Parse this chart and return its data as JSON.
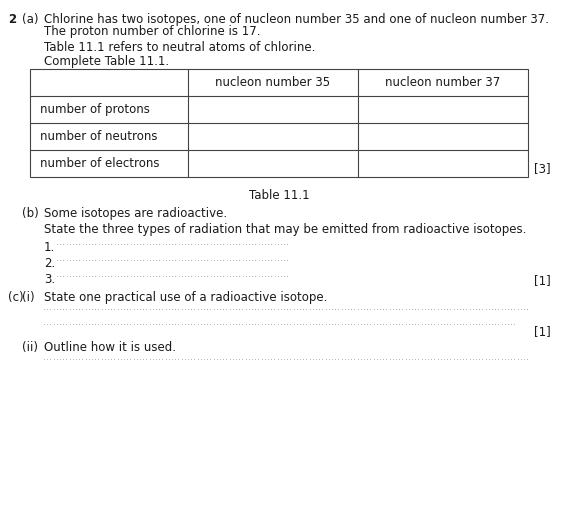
{
  "bg_color": "#ffffff",
  "text_color": "#1a1a1a",
  "font_size": 8.5,
  "question_number": "2",
  "part_a_label": "(a)",
  "part_a_text1": "Chlorine has two isotopes, one of nucleon number 35 and one of nucleon number 37.",
  "part_a_text2": "The proton number of chlorine is 17.",
  "part_a_text3": "Table 11.1 refers to neutral atoms of chlorine.",
  "part_a_text4": "Complete Table 11.1.",
  "table_caption": "Table 11.1",
  "table_col_headers": [
    "nucleon number 35",
    "nucleon number 37"
  ],
  "table_row_headers": [
    "number of protons",
    "number of neutrons",
    "number of electrons"
  ],
  "mark_a": "[3]",
  "part_b_label": "(b)",
  "part_b_text1": "Some isotopes are radioactive.",
  "part_b_text2": "State the three types of radiation that may be emitted from radioactive isotopes.",
  "numbered_lines": [
    "1.",
    "2.",
    "3."
  ],
  "mark_b": "[1]",
  "part_c_label": "(c)",
  "part_ci_label": "(i)",
  "part_ci_text": "State one practical use of a radioactive isotope.",
  "mark_ci": "[1]",
  "part_cii_label": "(ii)",
  "part_cii_text": "Outline how it is used."
}
